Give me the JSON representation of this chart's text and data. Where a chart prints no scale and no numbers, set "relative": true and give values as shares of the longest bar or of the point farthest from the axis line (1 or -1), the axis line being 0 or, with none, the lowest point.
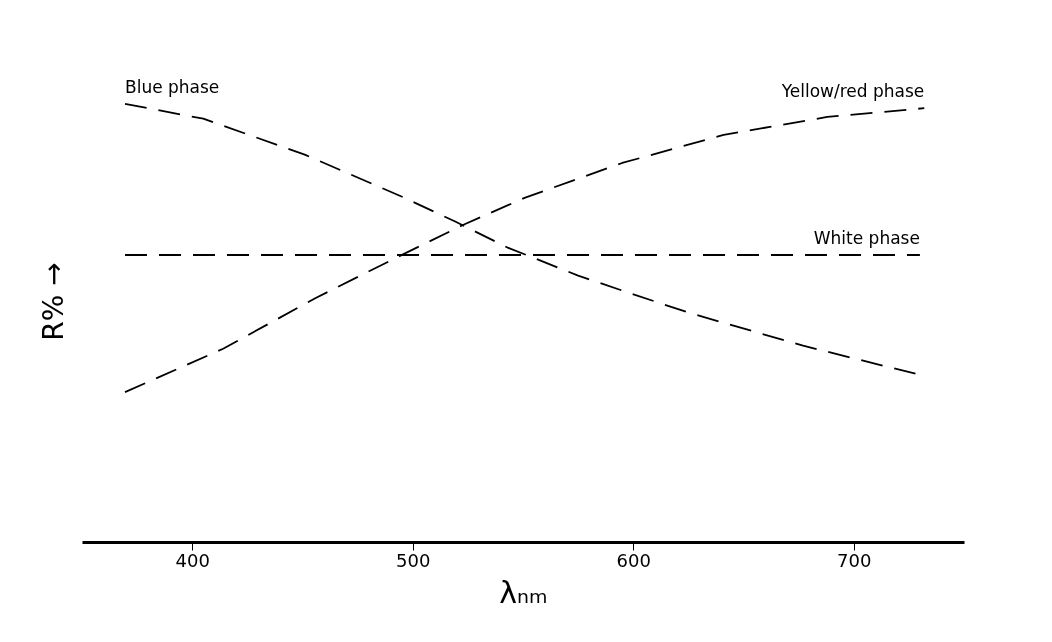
{
  "chart_data": {
    "type": "line",
    "relative": true,
    "xlabel": "λₙₘ",
    "ylabel": "R% →",
    "xlim": [
      350,
      750
    ],
    "xticks": [
      400,
      500,
      600,
      700
    ],
    "line_style": "dashed",
    "series": [
      {
        "name": "Blue phase",
        "color": "#000000",
        "x": [
          369.5,
          405,
          451,
          496,
          519,
          543,
          575,
          599,
          626,
          677,
          728
        ],
        "values": [
          1.0,
          0.966,
          0.884,
          0.786,
          0.732,
          0.672,
          0.608,
          0.567,
          0.522,
          0.448,
          0.384
        ]
      },
      {
        "name": "Yellow/red phase",
        "color": "#000000",
        "x": [
          369.5,
          414,
          456,
          493,
          523,
          551,
          595,
          641,
          688,
          732
        ],
        "values": [
          0.342,
          0.441,
          0.557,
          0.65,
          0.724,
          0.786,
          0.865,
          0.929,
          0.97,
          0.99
        ]
      },
      {
        "name": "White phase",
        "color": "#000000",
        "x": [
          369.5,
          730
        ],
        "values": [
          0.655,
          0.655
        ]
      }
    ]
  }
}
